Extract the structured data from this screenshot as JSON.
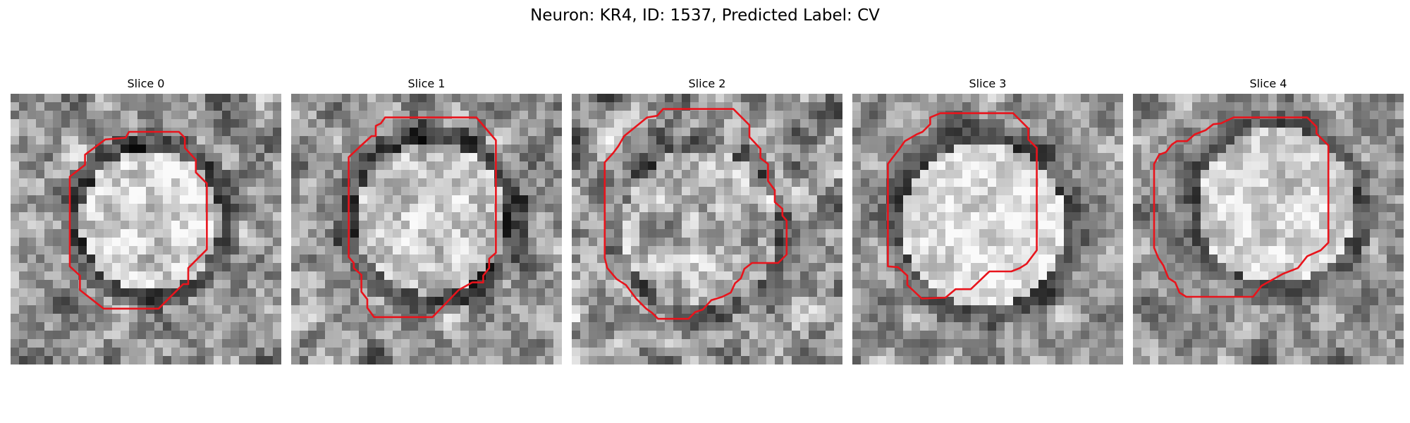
{
  "figure": {
    "title": "Neuron: KR4, ID: 1537, Predicted Label: CV",
    "contour_color": "#e8141c"
  },
  "panels": [
    {
      "title": "Slice 0"
    },
    {
      "title": "Slice 1"
    },
    {
      "title": "Slice 2"
    },
    {
      "title": "Slice 3"
    },
    {
      "title": "Slice 4"
    }
  ]
}
